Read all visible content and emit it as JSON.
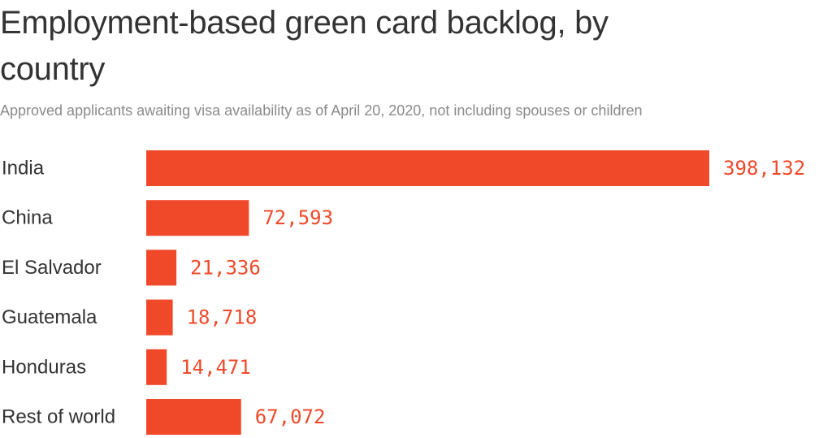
{
  "colors": {
    "bar": "#f0492a",
    "value_text": "#f0492a",
    "title_text": "#333333",
    "subtitle_text": "#8a8a8a"
  },
  "chart_data": {
    "type": "bar",
    "orientation": "horizontal",
    "title": "Employment-based green card backlog, by country",
    "subtitle": "Approved applicants awaiting visa availability as of April 20, 2020, not including spouses or children",
    "categories": [
      "India",
      "China",
      "El Salvador",
      "Guatemala",
      "Honduras",
      "Rest of world"
    ],
    "values": [
      398132,
      72593,
      21336,
      18718,
      14471,
      67072
    ],
    "value_labels": [
      "398,132",
      "72,593",
      "21,336",
      "18,718",
      "14,471",
      "67,072"
    ],
    "xlabel": "",
    "ylabel": "",
    "xlim": [
      0,
      398132
    ],
    "grid": false,
    "legend": "none"
  }
}
